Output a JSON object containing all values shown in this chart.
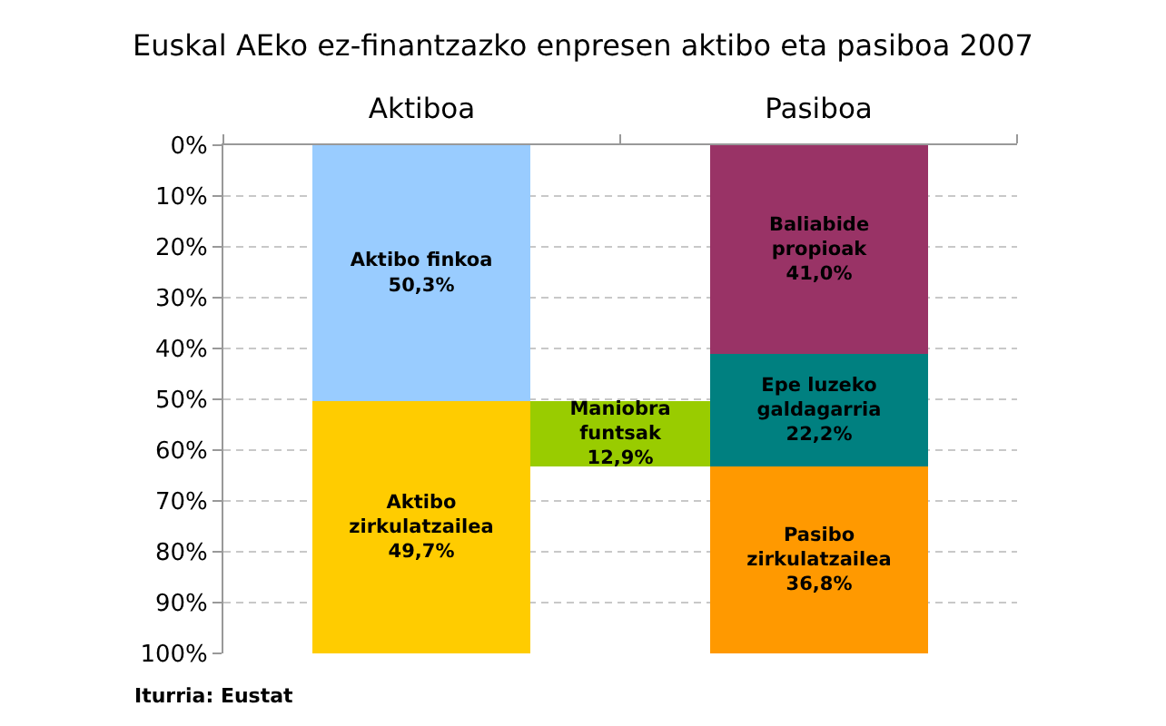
{
  "chart_data": {
    "type": "bar",
    "stacked": true,
    "title": "Euskal AEko ez-finantzazko enpresen aktibo eta pasiboa 2007",
    "categories": [
      "Aktiboa",
      null,
      "Pasiboa"
    ],
    "series": [
      {
        "name": "Aktibo finkoa",
        "color": "#99ccff",
        "values": [
          50.3,
          null,
          null
        ],
        "value_labels": [
          "50,3%",
          null,
          null
        ]
      },
      {
        "name": "Aktibo zirkulatzailea",
        "color": "#ffcc00",
        "values": [
          49.7,
          null,
          null
        ],
        "value_labels": [
          "49,7%",
          null,
          null
        ]
      },
      {
        "name": "Maniobra funtsak",
        "color": "#99cc00",
        "values": [
          null,
          12.9,
          null
        ],
        "base": [
          null,
          50.3,
          null
        ],
        "value_labels": [
          null,
          "12,9%",
          null
        ]
      },
      {
        "name": "Baliabide propioak",
        "color": "#993366",
        "values": [
          null,
          null,
          41.0
        ],
        "value_labels": [
          null,
          null,
          "41,0%"
        ]
      },
      {
        "name": "Epe luzeko galdagarria",
        "color": "#008080",
        "values": [
          null,
          null,
          22.2
        ],
        "value_labels": [
          null,
          null,
          "22,2%"
        ]
      },
      {
        "name": "Pasibo zirkulatzailea",
        "color": "#ff9900",
        "values": [
          null,
          null,
          36.8
        ],
        "value_labels": [
          null,
          null,
          "36,8%"
        ]
      }
    ],
    "ylim": [
      100,
      0
    ],
    "yticks": [
      {
        "value": 0,
        "label": "0%"
      },
      {
        "value": 10,
        "label": "10%"
      },
      {
        "value": 20,
        "label": "20%"
      },
      {
        "value": 30,
        "label": "30%"
      },
      {
        "value": 40,
        "label": "40%"
      },
      {
        "value": 50,
        "label": "50%"
      },
      {
        "value": 60,
        "label": "60%"
      },
      {
        "value": 70,
        "label": "70%"
      },
      {
        "value": 80,
        "label": "80%"
      },
      {
        "value": 90,
        "label": "90%"
      },
      {
        "value": 100,
        "label": "100%"
      }
    ],
    "grid": "y",
    "legend": false,
    "annotations": [
      "Iturria: Eustat"
    ]
  }
}
